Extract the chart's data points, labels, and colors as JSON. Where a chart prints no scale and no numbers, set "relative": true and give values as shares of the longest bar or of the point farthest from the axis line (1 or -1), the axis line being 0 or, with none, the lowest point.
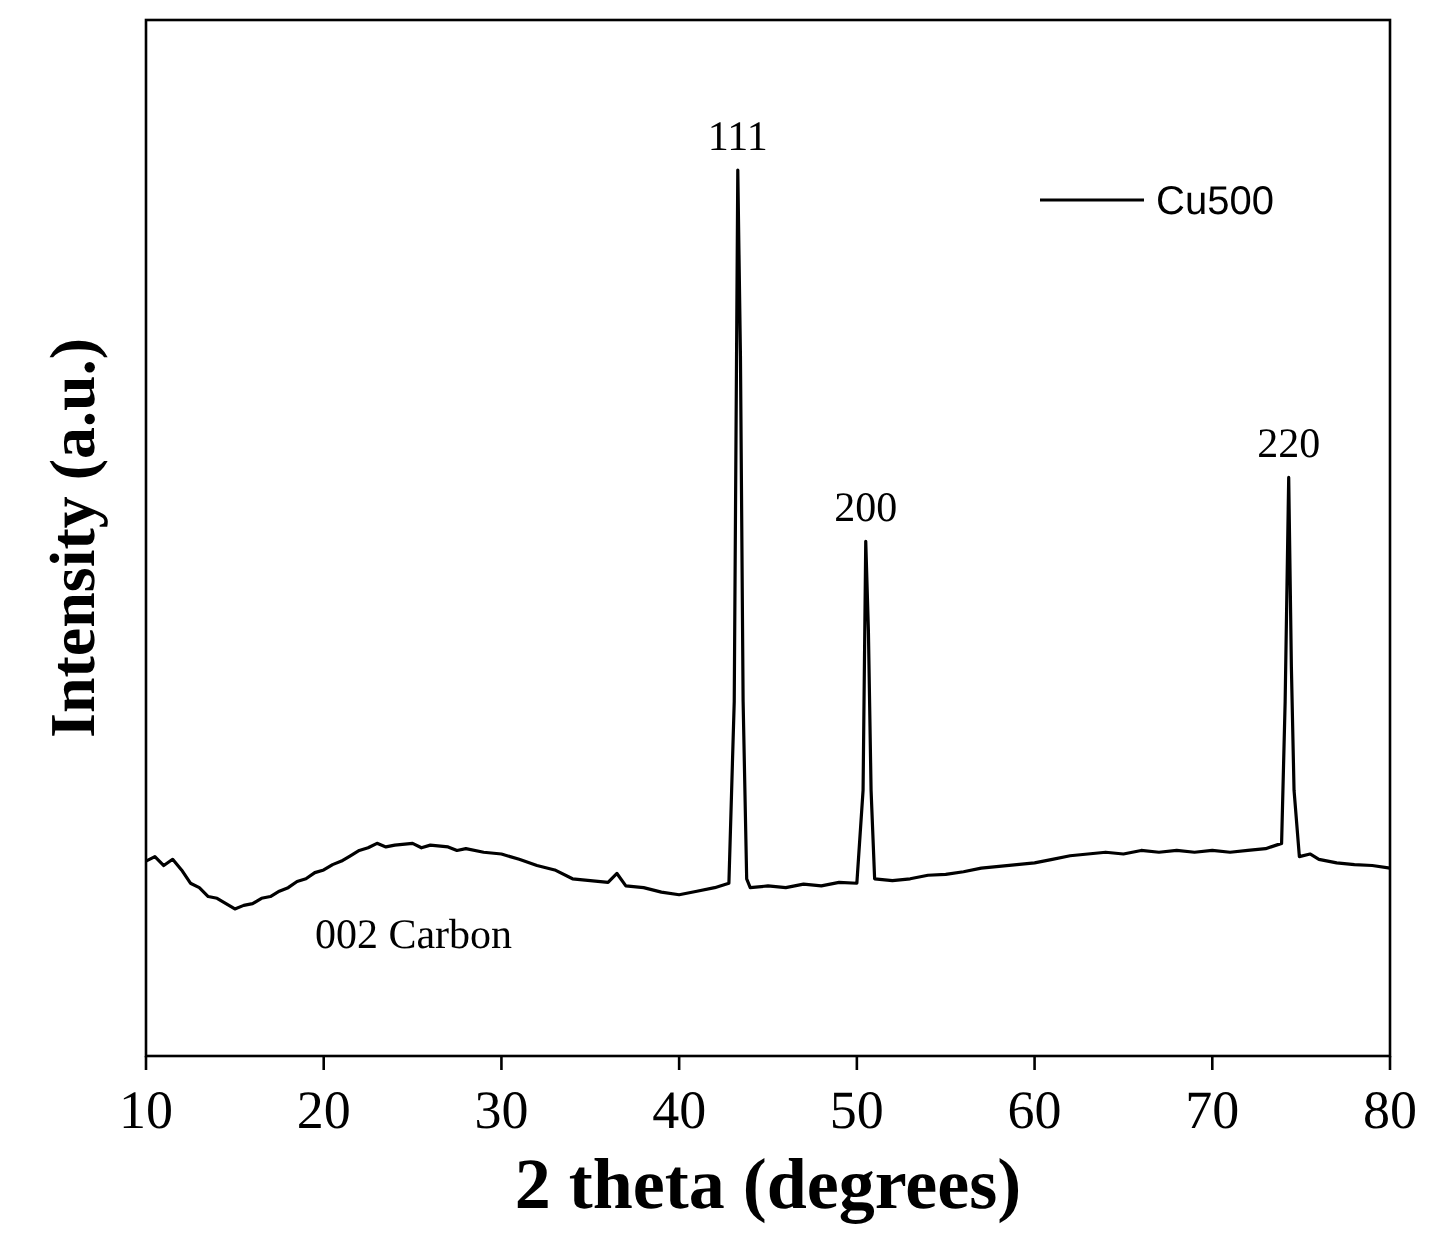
{
  "chart_data": {
    "type": "line",
    "relative": true,
    "xlabel": "2 theta (degrees)",
    "ylabel": "Intensity (a.u.)",
    "xlim": [
      10,
      80
    ],
    "xticks": [
      10,
      20,
      30,
      40,
      50,
      60,
      70,
      80
    ],
    "legend": "top right",
    "grid": false,
    "line_style": "solid",
    "annotations": [
      {
        "text": "111",
        "x": 43.3,
        "y": 1
      },
      {
        "text": "200",
        "x": 50.5,
        "y": 0.581
      },
      {
        "text": "220",
        "x": 74.3,
        "y": 0.653
      },
      "002 Carbon"
    ],
    "series": [
      {
        "name": "Cu500",
        "color": "#000000",
        "x": [
          10,
          10.5,
          11,
          11.5,
          12,
          12.5,
          13,
          13.5,
          14,
          14.5,
          15,
          15.5,
          16,
          16.5,
          17,
          17.5,
          18,
          18.5,
          19,
          19.5,
          20,
          20.5,
          21,
          21.5,
          22,
          22.5,
          23,
          23.5,
          24,
          25,
          25.5,
          26,
          27,
          27.5,
          28,
          29,
          30,
          31,
          32,
          33,
          34,
          35,
          36,
          36.5,
          37,
          38,
          39,
          40,
          41,
          42,
          42.8,
          43.1,
          43.3,
          43.45,
          43.6,
          43.8,
          44,
          45,
          46,
          47,
          48,
          49,
          50,
          50.35,
          50.5,
          50.65,
          50.8,
          51,
          52,
          53,
          54,
          55,
          56,
          57,
          58,
          59,
          60,
          61,
          62,
          63,
          64,
          65,
          66,
          67,
          68,
          69,
          70,
          71,
          72,
          73,
          73.9,
          74.1,
          74.3,
          74.45,
          74.6,
          74.9,
          75.5,
          76,
          77,
          78,
          79,
          80
        ],
        "values": [
          0.22,
          0.225,
          0.215,
          0.222,
          0.21,
          0.195,
          0.19,
          0.18,
          0.178,
          0.172,
          0.166,
          0.17,
          0.172,
          0.178,
          0.18,
          0.186,
          0.19,
          0.197,
          0.2,
          0.207,
          0.21,
          0.216,
          0.22,
          0.226,
          0.232,
          0.235,
          0.24,
          0.236,
          0.238,
          0.24,
          0.235,
          0.238,
          0.236,
          0.232,
          0.234,
          0.23,
          0.228,
          0.222,
          0.215,
          0.21,
          0.2,
          0.198,
          0.196,
          0.206,
          0.192,
          0.19,
          0.185,
          0.182,
          0.186,
          0.19,
          0.195,
          0.4,
          1,
          0.79,
          0.4,
          0.2,
          0.19,
          0.192,
          0.19,
          0.194,
          0.192,
          0.196,
          0.195,
          0.3,
          0.581,
          0.48,
          0.3,
          0.2,
          0.198,
          0.2,
          0.204,
          0.205,
          0.208,
          0.212,
          0.214,
          0.216,
          0.218,
          0.222,
          0.226,
          0.228,
          0.23,
          0.228,
          0.232,
          0.23,
          0.232,
          0.23,
          0.232,
          0.23,
          0.232,
          0.234,
          0.24,
          0.4,
          0.653,
          0.44,
          0.3,
          0.225,
          0.228,
          0.222,
          0.218,
          0.216,
          0.215,
          0.212
        ]
      }
    ]
  }
}
